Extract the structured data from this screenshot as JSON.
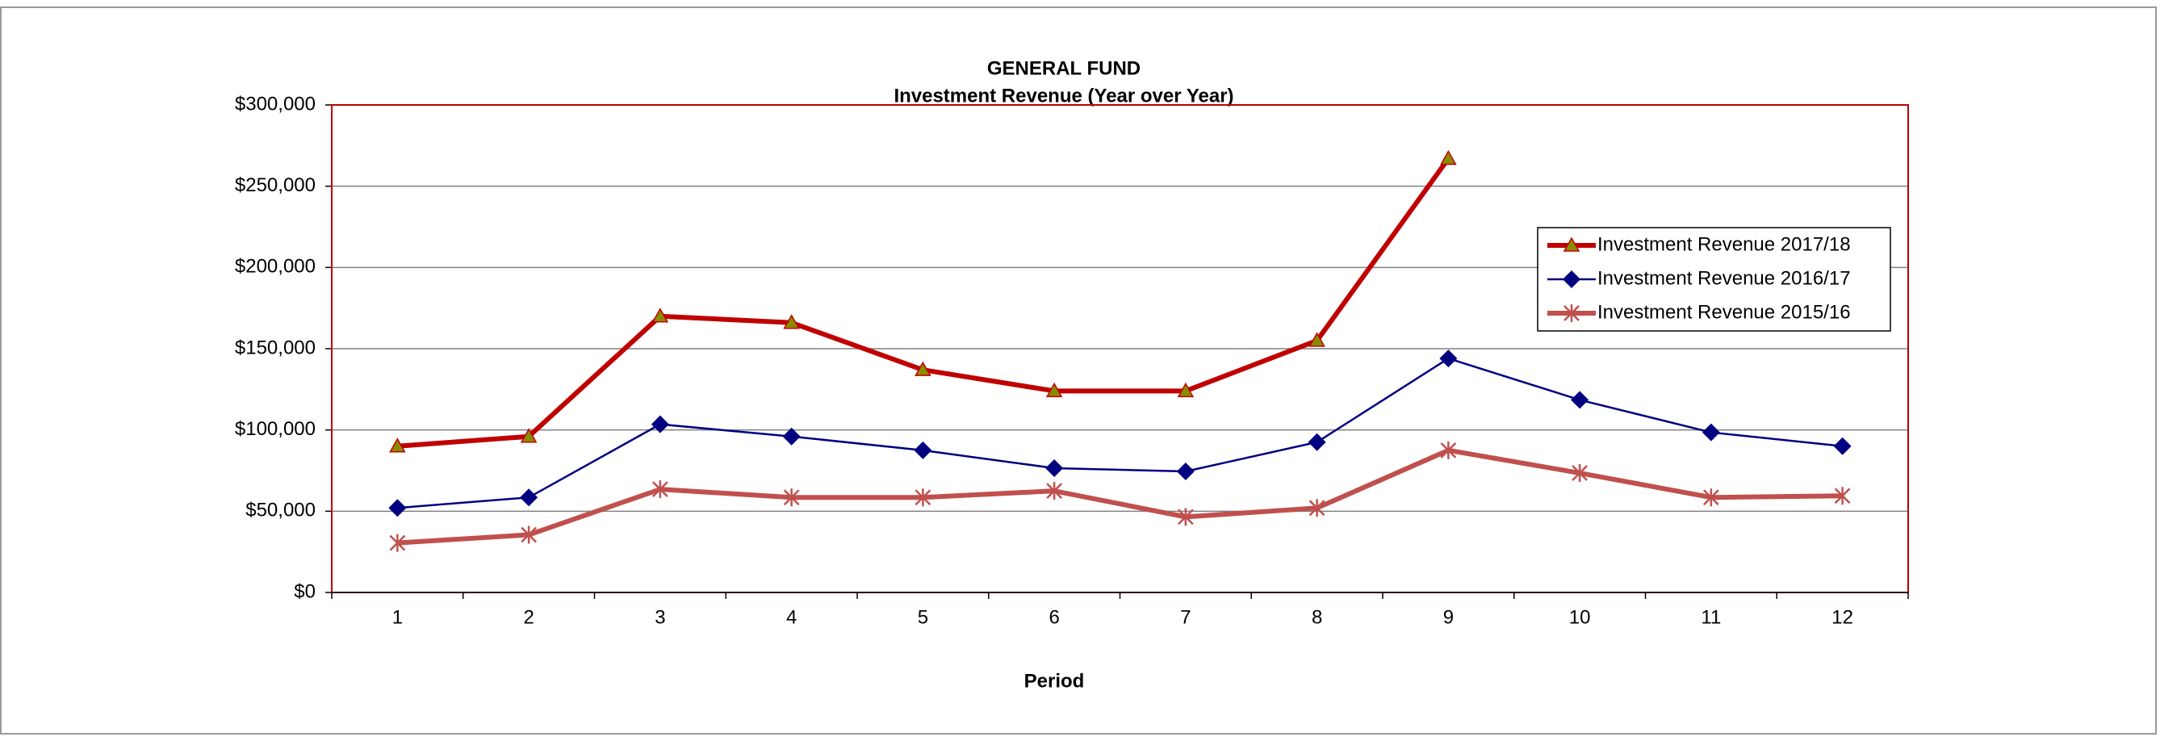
{
  "chart_data": {
    "type": "line",
    "title": "GENERAL FUND",
    "subtitle": "Investment Revenue (Year over Year)",
    "x_label": "Period",
    "categories": [
      "1",
      "2",
      "3",
      "4",
      "5",
      "6",
      "7",
      "8",
      "9",
      "10",
      "11",
      "12"
    ],
    "ylim": [
      0,
      300000
    ],
    "yticks": [
      {
        "value": 0,
        "label": "$0"
      },
      {
        "value": 50000,
        "label": "$50,000"
      },
      {
        "value": 100000,
        "label": "$100,000"
      },
      {
        "value": 150000,
        "label": "$150,000"
      },
      {
        "value": 200000,
        "label": "$200,000"
      },
      {
        "value": 250000,
        "label": "$250,000"
      },
      {
        "value": 300000,
        "label": "$300,000"
      }
    ],
    "grid": true,
    "legend": "right",
    "series": [
      {
        "name": "Investment Revenue 2017/18",
        "color": "#C00000",
        "marker": "triangle",
        "values": [
          90000,
          96000,
          170000,
          166000,
          137000,
          124000,
          124000,
          155000,
          267000,
          null,
          null,
          null
        ]
      },
      {
        "name": "Investment Revenue 2016/17",
        "color": "#000080",
        "marker": "diamond",
        "values": [
          52000,
          58500,
          103500,
          96000,
          87500,
          76500,
          74500,
          92500,
          144000,
          118500,
          98500,
          90000
        ]
      },
      {
        "name": "Investment Revenue 2015/16",
        "color": "#C0504D",
        "marker": "asterisk",
        "values": [
          30500,
          35500,
          63500,
          58500,
          58500,
          62500,
          46500,
          52000,
          87500,
          73500,
          58500,
          59500
        ]
      }
    ]
  }
}
